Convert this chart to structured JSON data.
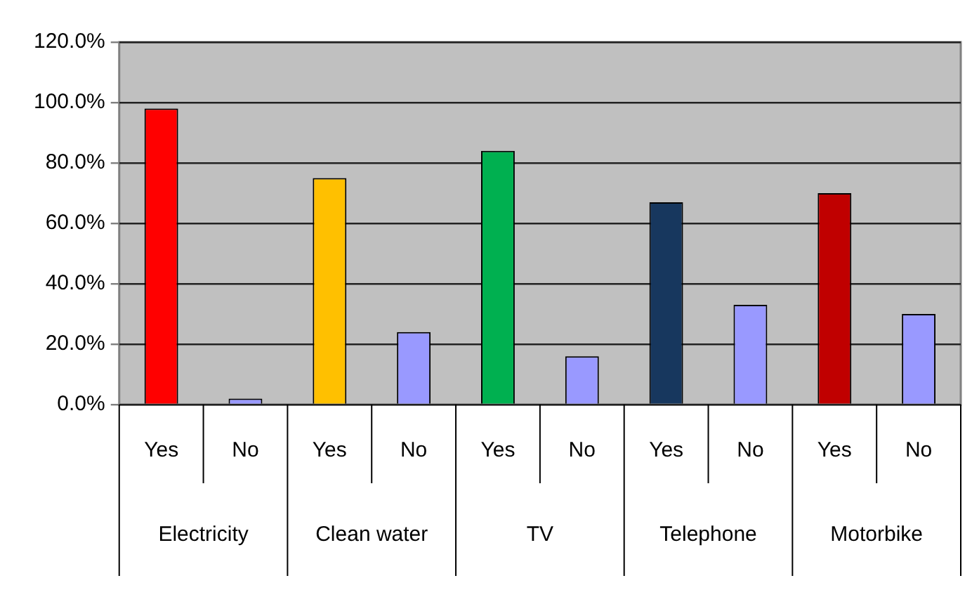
{
  "chart_data": {
    "type": "bar",
    "categories": [
      "Yes",
      "No",
      "Yes",
      "No",
      "Yes",
      "No",
      "Yes",
      "No",
      "Yes",
      "No"
    ],
    "values": [
      98,
      2,
      75,
      24,
      84,
      16,
      67,
      33,
      70,
      30
    ],
    "colors": [
      "#ff0000",
      "#9999ff",
      "#ffc000",
      "#9999ff",
      "#00b050",
      "#9999ff",
      "#17375e",
      "#9999ff",
      "#c00000",
      "#9999ff"
    ],
    "annotations": [
      "Electricity",
      "Clean water",
      "TV",
      "Telephone",
      "Motorbike"
    ],
    "ylim": [
      0,
      120
    ],
    "yticks": [
      {
        "value": 0,
        "label": "0.0%"
      },
      {
        "value": 20,
        "label": "20.0%"
      },
      {
        "value": 40,
        "label": "40.0%"
      },
      {
        "value": 60,
        "label": "60.0%"
      },
      {
        "value": 80,
        "label": "80.0%"
      },
      {
        "value": 100,
        "label": "100.0%"
      },
      {
        "value": 120,
        "label": "120.0%"
      }
    ],
    "grid": "y",
    "legend": false
  }
}
